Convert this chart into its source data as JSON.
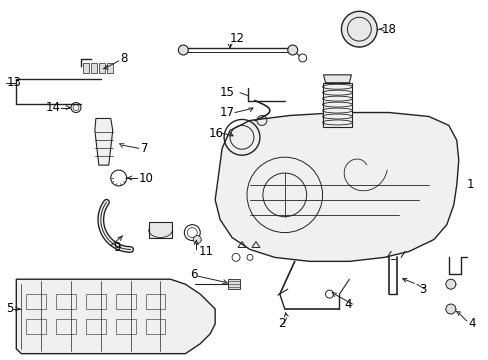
{
  "bg_color": "#ffffff",
  "line_color": "#222222",
  "fig_width": 4.89,
  "fig_height": 3.6,
  "dpi": 100,
  "font_size": 8.5,
  "label_color": "#000000"
}
